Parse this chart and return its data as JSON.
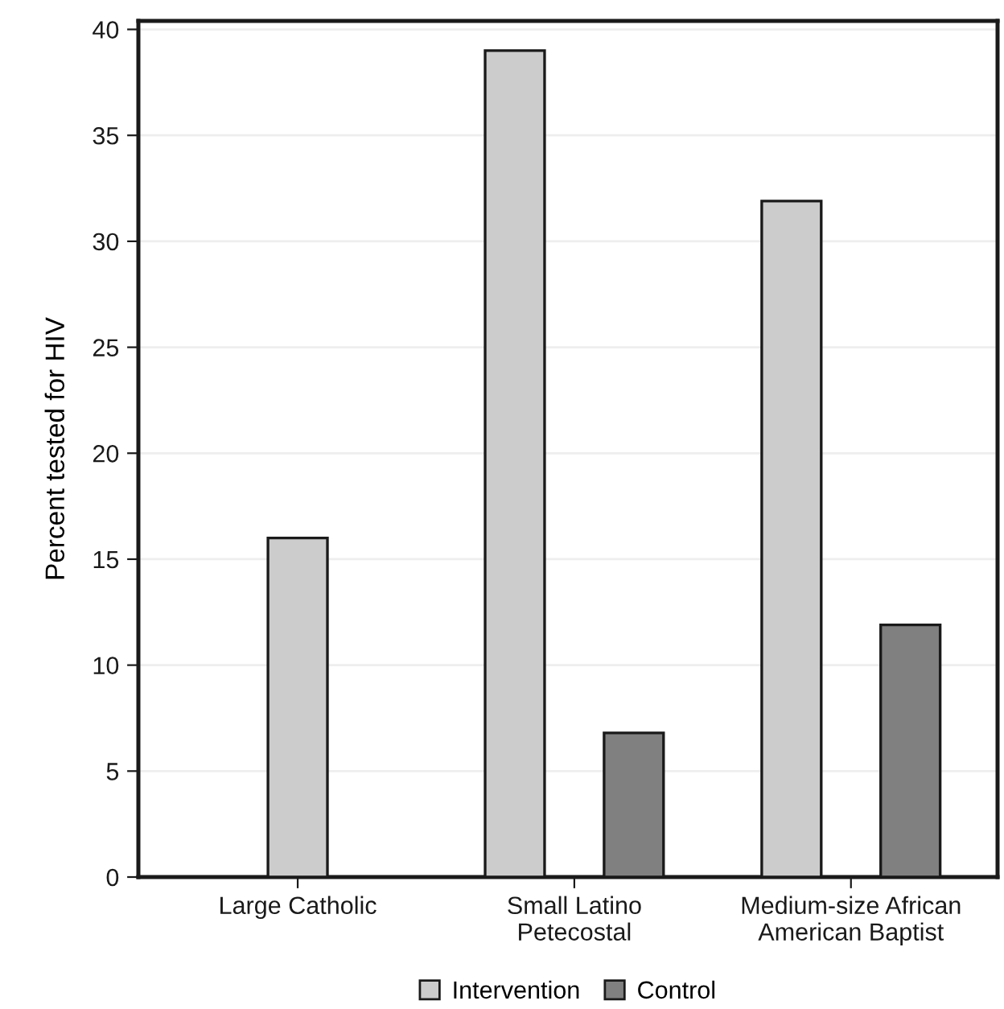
{
  "chart_data": {
    "type": "bar",
    "ylabel": "Percent tested for HIV",
    "categories": [
      "Large Catholic",
      "Small Latino\nPetecostal",
      "Medium-size African\nAmerican Baptist"
    ],
    "series": [
      {
        "name": "Intervention",
        "color": "#cccccc",
        "values": [
          16.0,
          39.0,
          31.9
        ]
      },
      {
        "name": "Control",
        "color": "#808080",
        "values": [
          null,
          6.8,
          11.9
        ]
      }
    ],
    "ylim": [
      0,
      40.4
    ],
    "yticks": [
      0,
      5,
      10,
      15,
      20,
      25,
      30,
      35,
      40
    ],
    "grid": "y",
    "legend": "bottom"
  }
}
